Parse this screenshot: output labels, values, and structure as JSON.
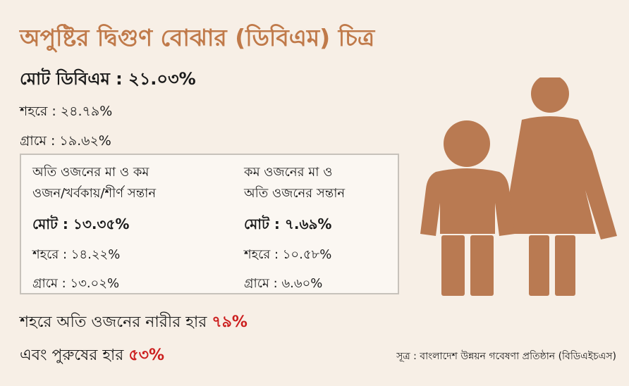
{
  "title": "অপুষ্টির দ্বিগুণ বোঝার (ডিবিএম) চিত্র",
  "summary": {
    "total": "মোট ডিবিএম : ২১.০৩%",
    "urban": "শহরে : ২৪.৭৯%",
    "rural": "গ্রামে : ১৯.৬২%"
  },
  "box": {
    "left": {
      "heading_line1": "অতি ওজনের মা ও কম",
      "heading_line2": "ওজন/খর্বকায়/শীর্ণ সন্তান",
      "total": "মোট : ১৩.৩৫%",
      "urban": "শহরে : ১৪.২২%",
      "rural": "গ্রামে : ১৩.০২%"
    },
    "right": {
      "heading_line1": "কম ওজনের মা ও",
      "heading_line2": "অতি ওজনের সন্তান",
      "total": "মোট : ৭.৬৯%",
      "urban": "শহরে : ১০.৫৮%",
      "rural": "গ্রামে : ৬.৬০%"
    }
  },
  "bottom": {
    "line1_text": "শহরে অতি ওজনের নারীর হার",
    "line1_value": "৭৯%",
    "line2_text": "এবং পুরুষের হার",
    "line2_value": "৫৩%"
  },
  "source": "সূত্র : বাংলাদেশ উন্নয়ন গবেষণা প্রতিষ্ঠান (বিডিএইচএস)",
  "colors": {
    "title": "#c07a4a",
    "highlight": "#cc1f1f",
    "figure": "#b97a52",
    "background": "#f7efe6"
  },
  "icons": [
    "mother-child-icon"
  ]
}
